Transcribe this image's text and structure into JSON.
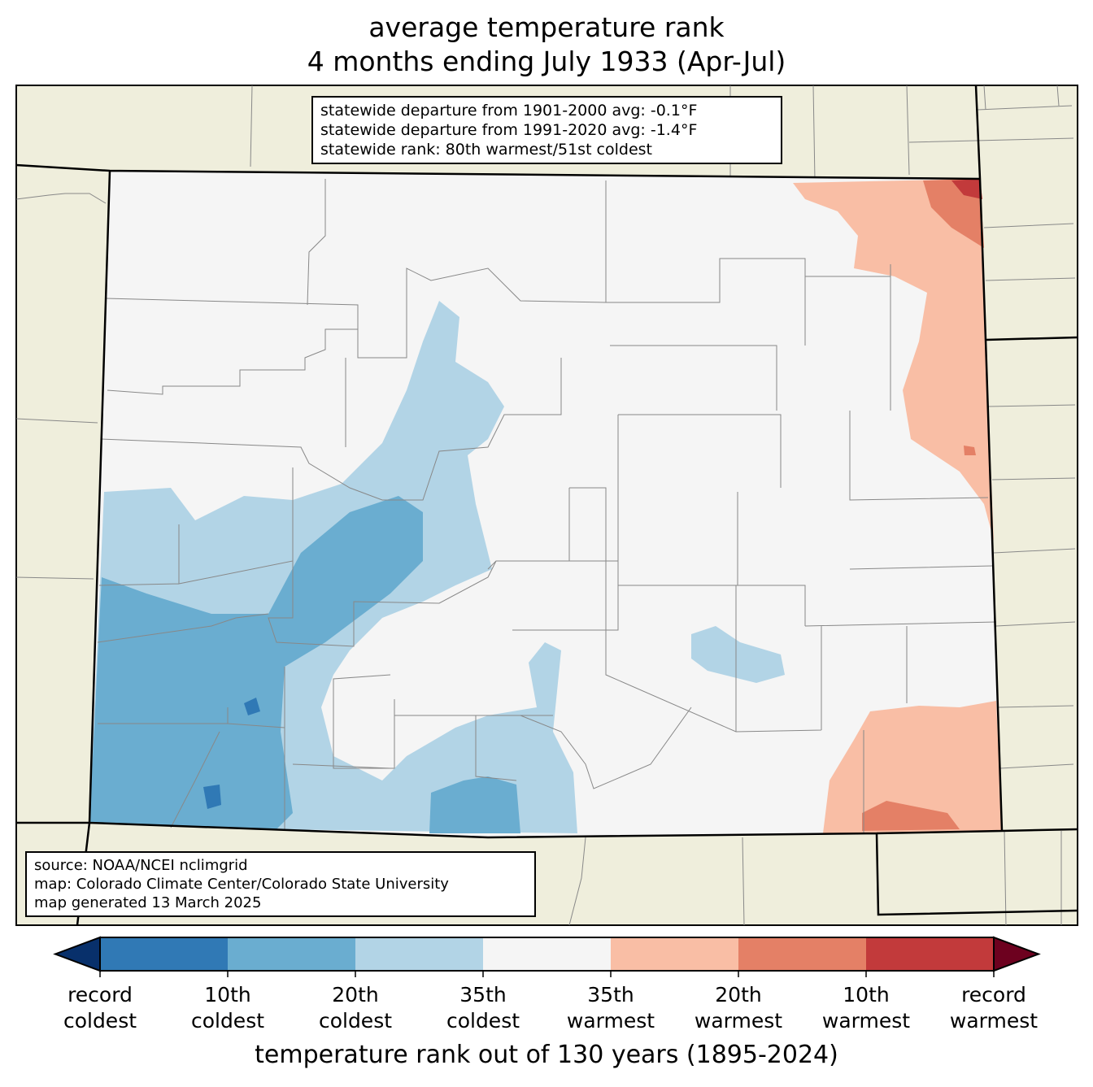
{
  "title": {
    "line1": "average temperature rank",
    "line2": "4 months ending July 1933 (Apr-Jul)"
  },
  "stats": {
    "line1": "statewide departure from 1901-2000 avg: -0.1°F",
    "line2": "statewide departure from 1991-2020 avg: -1.4°F",
    "line3": "statewide rank: 80th warmest/51st coldest"
  },
  "source": {
    "line1": "source: NOAA/NCEI nclimgrid",
    "line2": "map: Colorado Climate Center/Colorado State University",
    "line3": "map generated 13 March 2025"
  },
  "colorbar": {
    "colors": [
      "#08306b",
      "#3079b5",
      "#6aadd0",
      "#b2d4e6",
      "#f5f5f5",
      "#f9bea5",
      "#e48066",
      "#c23a3b",
      "#6d011f"
    ],
    "ticks": [
      [
        "record",
        "coldest"
      ],
      [
        "10th",
        "coldest"
      ],
      [
        "20th",
        "coldest"
      ],
      [
        "35th",
        "coldest"
      ],
      [
        "35th",
        "warmest"
      ],
      [
        "20th",
        "warmest"
      ],
      [
        "10th",
        "warmest"
      ],
      [
        "record",
        "warmest"
      ]
    ],
    "label": "temperature rank out of 130 years (1895-2024)"
  }
}
